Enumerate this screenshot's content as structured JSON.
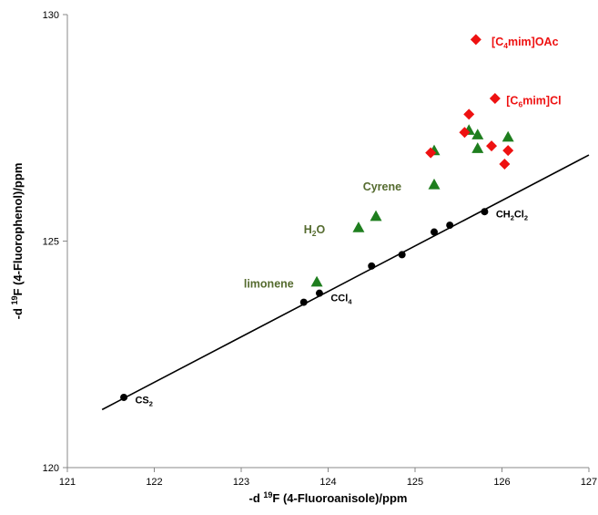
{
  "chart_data": {
    "type": "scatter",
    "xlabel": {
      "prefix": "-d ",
      "sup": "19",
      "rest": "F (4-Fluoroanisole)/ppm"
    },
    "ylabel": {
      "prefix": "-d ",
      "sup": "19",
      "rest": "F (4-Fluorophenol)/ppm"
    },
    "xlim": [
      121,
      127
    ],
    "ylim": [
      120,
      130
    ],
    "xticks": [
      "121",
      "122",
      "123",
      "124",
      "125",
      "126",
      "127"
    ],
    "yticks": [
      "120",
      "125",
      "130"
    ],
    "grid": false,
    "legend": "none",
    "series": [
      {
        "marker": "circle",
        "color": "#000000",
        "points": [
          [
            121.65,
            121.55
          ],
          [
            123.72,
            123.65
          ],
          [
            123.9,
            123.85
          ],
          [
            124.5,
            124.45
          ],
          [
            124.85,
            124.7
          ],
          [
            125.22,
            125.2
          ],
          [
            125.4,
            125.35
          ],
          [
            125.8,
            125.65
          ]
        ]
      },
      {
        "marker": "triangle",
        "color": "#1e7e1e",
        "points": [
          [
            123.87,
            124.1
          ],
          [
            124.35,
            125.3
          ],
          [
            124.55,
            125.55
          ],
          [
            125.22,
            126.25
          ],
          [
            125.22,
            127.0
          ],
          [
            125.62,
            127.45
          ],
          [
            125.72,
            127.35
          ],
          [
            125.72,
            127.05
          ],
          [
            126.07,
            127.3
          ]
        ]
      },
      {
        "marker": "diamond",
        "color": "#ee1111",
        "points": [
          [
            125.18,
            126.95
          ],
          [
            125.57,
            127.4
          ],
          [
            125.62,
            127.8
          ],
          [
            125.88,
            127.1
          ],
          [
            126.03,
            126.7
          ],
          [
            126.07,
            127.0
          ],
          [
            125.92,
            128.15
          ],
          [
            125.7,
            129.45
          ]
        ]
      }
    ],
    "fit_line": {
      "x": [
        121.4,
        127.0
      ],
      "y": [
        121.28,
        126.9
      ]
    },
    "annotations": [
      {
        "kind": "chem",
        "color": "#000000",
        "pos": [
          121.78,
          121.5
        ],
        "size": 11,
        "parts": [
          [
            "CS",
            ""
          ],
          [
            "2",
            "sub"
          ]
        ]
      },
      {
        "kind": "chem",
        "color": "#000000",
        "pos": [
          124.03,
          123.75
        ],
        "size": 11,
        "parts": [
          [
            "CCl",
            ""
          ],
          [
            "4",
            "sub"
          ]
        ]
      },
      {
        "kind": "chem",
        "color": "#000000",
        "pos": [
          125.93,
          125.6
        ],
        "size": 11,
        "parts": [
          [
            "CH",
            ""
          ],
          [
            "2",
            "sub"
          ],
          [
            "Cl",
            ""
          ],
          [
            "2",
            "sub"
          ]
        ]
      },
      {
        "kind": "chem",
        "color": "#556b2f",
        "pos": [
          123.03,
          124.05
        ],
        "size": 12.5,
        "parts": [
          [
            "limonene",
            ""
          ]
        ]
      },
      {
        "kind": "chem",
        "color": "#556b2f",
        "pos": [
          123.72,
          125.25
        ],
        "size": 12.5,
        "parts": [
          [
            "H",
            ""
          ],
          [
            "2",
            "sub"
          ],
          [
            "O",
            ""
          ]
        ]
      },
      {
        "kind": "chem",
        "color": "#556b2f",
        "pos": [
          124.4,
          126.2
        ],
        "size": 12.5,
        "parts": [
          [
            "Cyrene",
            ""
          ]
        ]
      },
      {
        "kind": "chem",
        "color": "#ee1111",
        "pos": [
          126.05,
          128.1
        ],
        "size": 12.5,
        "parts": [
          [
            "[C",
            ""
          ],
          [
            "6",
            "sub"
          ],
          [
            "mim]Cl",
            ""
          ]
        ]
      },
      {
        "kind": "chem",
        "color": "#ee1111",
        "pos": [
          125.88,
          129.4
        ],
        "size": 12.5,
        "parts": [
          [
            "[C",
            ""
          ],
          [
            "4",
            "sub"
          ],
          [
            "mim]OAc",
            ""
          ]
        ]
      }
    ]
  }
}
